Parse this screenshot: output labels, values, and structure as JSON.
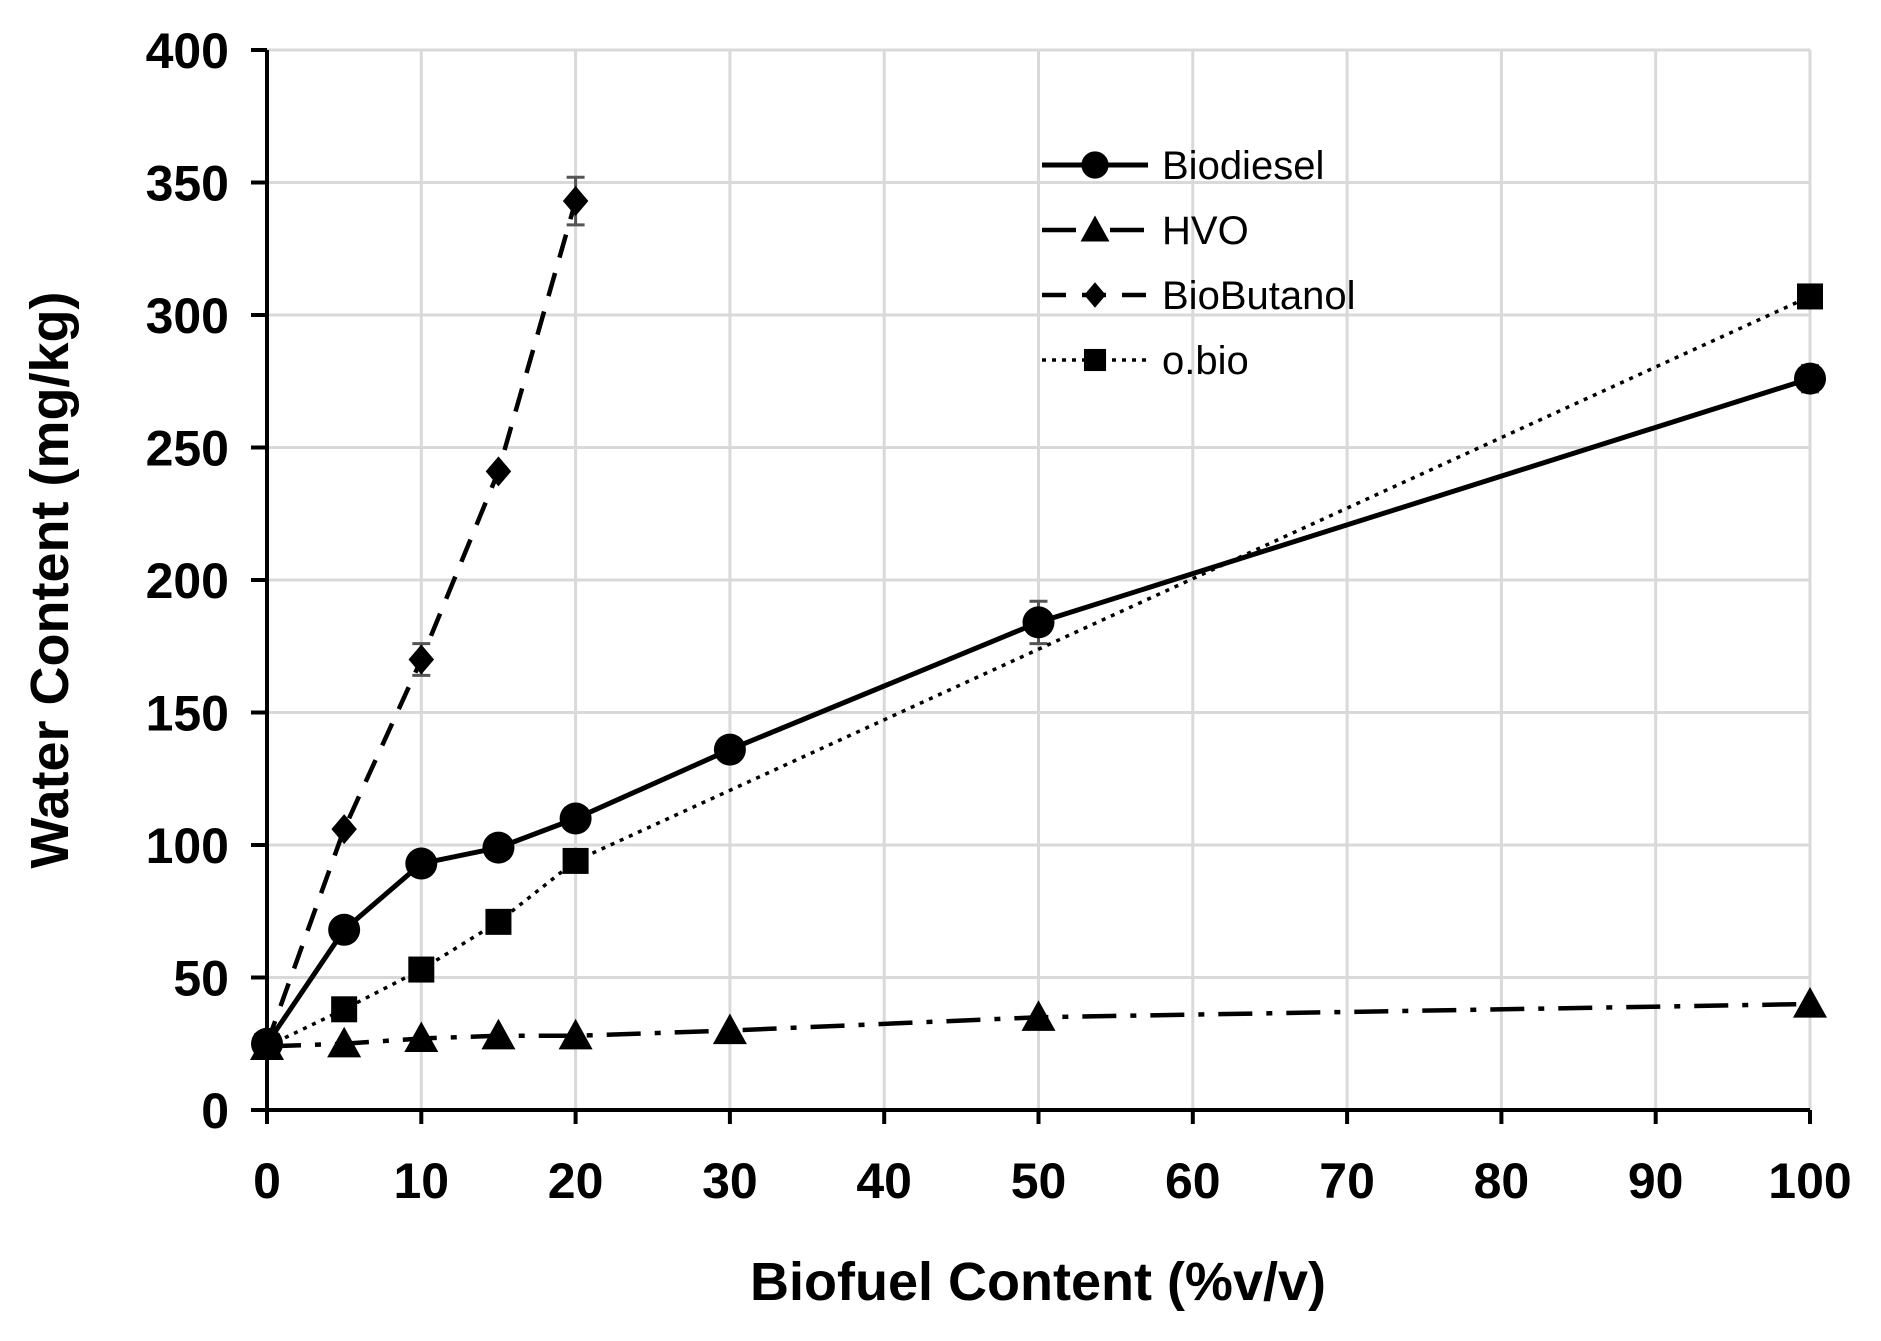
{
  "chart_data": {
    "type": "line",
    "title": "",
    "xlabel": "Biofuel Content (%v/v)",
    "ylabel": "Water Content (mg/kg)",
    "xlim": [
      0,
      100
    ],
    "ylim": [
      0,
      400
    ],
    "xticks": [
      0,
      10,
      20,
      30,
      40,
      50,
      60,
      70,
      80,
      90,
      100
    ],
    "yticks": [
      0,
      50,
      100,
      150,
      200,
      250,
      300,
      350,
      400
    ],
    "grid": true,
    "legend_position": "top-right",
    "series": [
      {
        "name": "Biodiesel",
        "marker": "circle",
        "line": "solid",
        "x": [
          0,
          5,
          10,
          15,
          20,
          30,
          50,
          100
        ],
        "y": [
          25,
          68,
          93,
          99,
          110,
          136,
          184,
          276
        ],
        "err": [
          0,
          0,
          0,
          0,
          0,
          0,
          8,
          5
        ]
      },
      {
        "name": "HVO",
        "marker": "triangle",
        "line": "dash-dot",
        "x": [
          0,
          5,
          10,
          15,
          20,
          30,
          50,
          100
        ],
        "y": [
          24,
          25,
          27,
          28,
          28,
          30,
          35,
          40
        ],
        "err": [
          0,
          0,
          0,
          0,
          0,
          0,
          0,
          0
        ]
      },
      {
        "name": "BioButanol",
        "marker": "diamond",
        "line": "dashed",
        "x": [
          0,
          5,
          10,
          15,
          20
        ],
        "y": [
          25,
          106,
          170,
          241,
          343
        ],
        "err": [
          0,
          0,
          6,
          0,
          9
        ]
      },
      {
        "name": "o.bio",
        "marker": "square",
        "line": "dotted",
        "x": [
          0,
          5,
          10,
          15,
          20,
          100
        ],
        "y": [
          24,
          38,
          53,
          71,
          94,
          307
        ],
        "err": [
          0,
          0,
          0,
          0,
          0,
          0
        ]
      }
    ]
  }
}
